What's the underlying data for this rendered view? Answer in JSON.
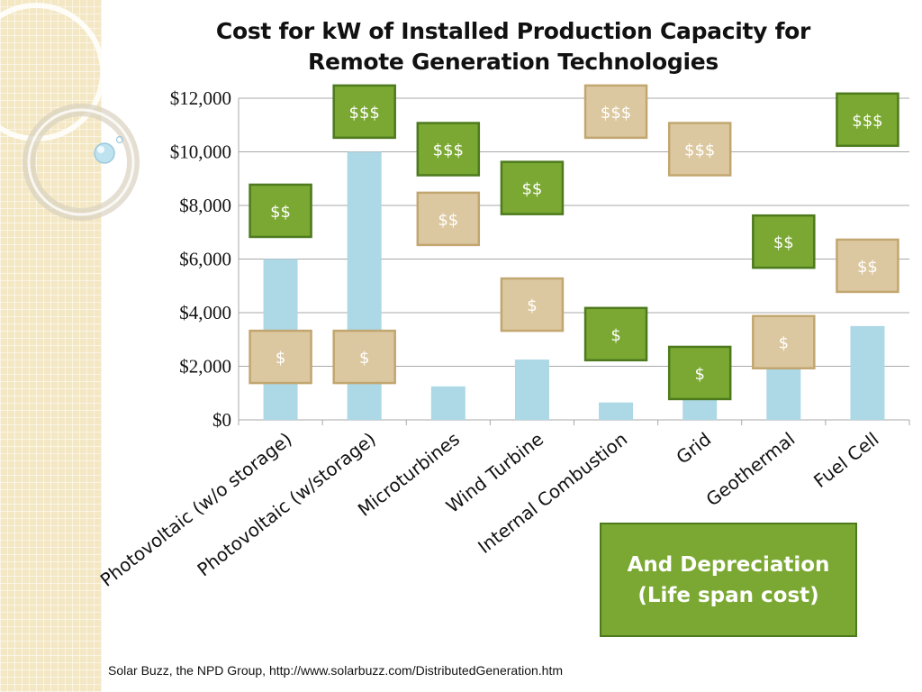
{
  "title_line1": "Cost for kW of Installed Production Capacity for",
  "title_line2": "Remote Generation Technologies",
  "source": "Solar Buzz, the NPD Group, http://www.solarbuzz.com/DistributedGeneration.htm",
  "callout": {
    "line1": "And Depreciation",
    "line2": "(Life span cost)"
  },
  "colors": {
    "bar": "#add8e6",
    "green_box": "#7aa832",
    "green_border": "#4d7a1d",
    "tan_box": "#dcc8a0",
    "tan_border": "#c2a670",
    "grid": "#a8a8a8"
  },
  "chart_data": {
    "type": "bar",
    "categories": [
      "Photovoltaic (w/o storage)",
      "Photovoltaic (w/storage)",
      "Microturbines",
      "Wind Turbine",
      "Internal Combustion",
      "Grid",
      "Geothermal",
      "Fuel Cell"
    ],
    "values": [
      6000,
      10000,
      1250,
      2250,
      650,
      1700,
      2500,
      3500
    ],
    "ylim": [
      0,
      12000
    ],
    "yticks": [
      "$0",
      "$2,000",
      "$4,000",
      "$6,000",
      "$8,000",
      "$10,000",
      "$12,000"
    ],
    "ytick_values": [
      0,
      2000,
      4000,
      6000,
      8000,
      10000,
      12000
    ],
    "grid": true,
    "annotations": [
      {
        "category": 0,
        "y": 7800,
        "text": "$$",
        "style": "green"
      },
      {
        "category": 0,
        "y": 2350,
        "text": "$",
        "style": "tan"
      },
      {
        "category": 1,
        "y": 11500,
        "text": "$$$",
        "style": "green"
      },
      {
        "category": 1,
        "y": 2350,
        "text": "$",
        "style": "tan"
      },
      {
        "category": 2,
        "y": 10100,
        "text": "$$$",
        "style": "green"
      },
      {
        "category": 2,
        "y": 7500,
        "text": "$$",
        "style": "tan"
      },
      {
        "category": 3,
        "y": 8650,
        "text": "$$",
        "style": "green"
      },
      {
        "category": 3,
        "y": 4300,
        "text": "$",
        "style": "tan"
      },
      {
        "category": 4,
        "y": 11500,
        "text": "$$$",
        "style": "tan"
      },
      {
        "category": 4,
        "y": 3200,
        "text": "$",
        "style": "green"
      },
      {
        "category": 5,
        "y": 10100,
        "text": "$$$",
        "style": "tan"
      },
      {
        "category": 5,
        "y": 1750,
        "text": "$",
        "style": "green"
      },
      {
        "category": 6,
        "y": 6650,
        "text": "$$",
        "style": "green"
      },
      {
        "category": 6,
        "y": 2900,
        "text": "$",
        "style": "tan"
      },
      {
        "category": 7,
        "y": 11200,
        "text": "$$$",
        "style": "green"
      },
      {
        "category": 7,
        "y": 5750,
        "text": "$$",
        "style": "tan"
      }
    ]
  }
}
